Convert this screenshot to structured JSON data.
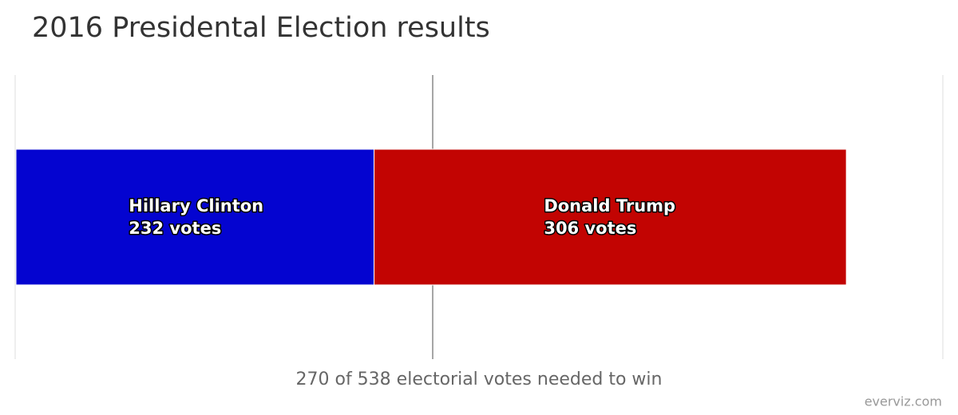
{
  "chart_data": {
    "type": "stacked-bar-horizontal",
    "title": "2016 Presidental Election results",
    "categories": [
      null
    ],
    "series": [
      {
        "name": "Hillary Clinton",
        "color": "#0404d0",
        "values": [
          232
        ],
        "value_labels": [
          "232 votes"
        ]
      },
      {
        "name": "Donald Trump",
        "color": "#c20402",
        "values": [
          306
        ],
        "value_labels": [
          "306 votes"
        ]
      }
    ],
    "xlim": [
      0,
      600
    ],
    "plot_line": {
      "value": 270,
      "label": "270 of 538 electorial votes needed to win"
    },
    "credit": "everviz.com"
  }
}
